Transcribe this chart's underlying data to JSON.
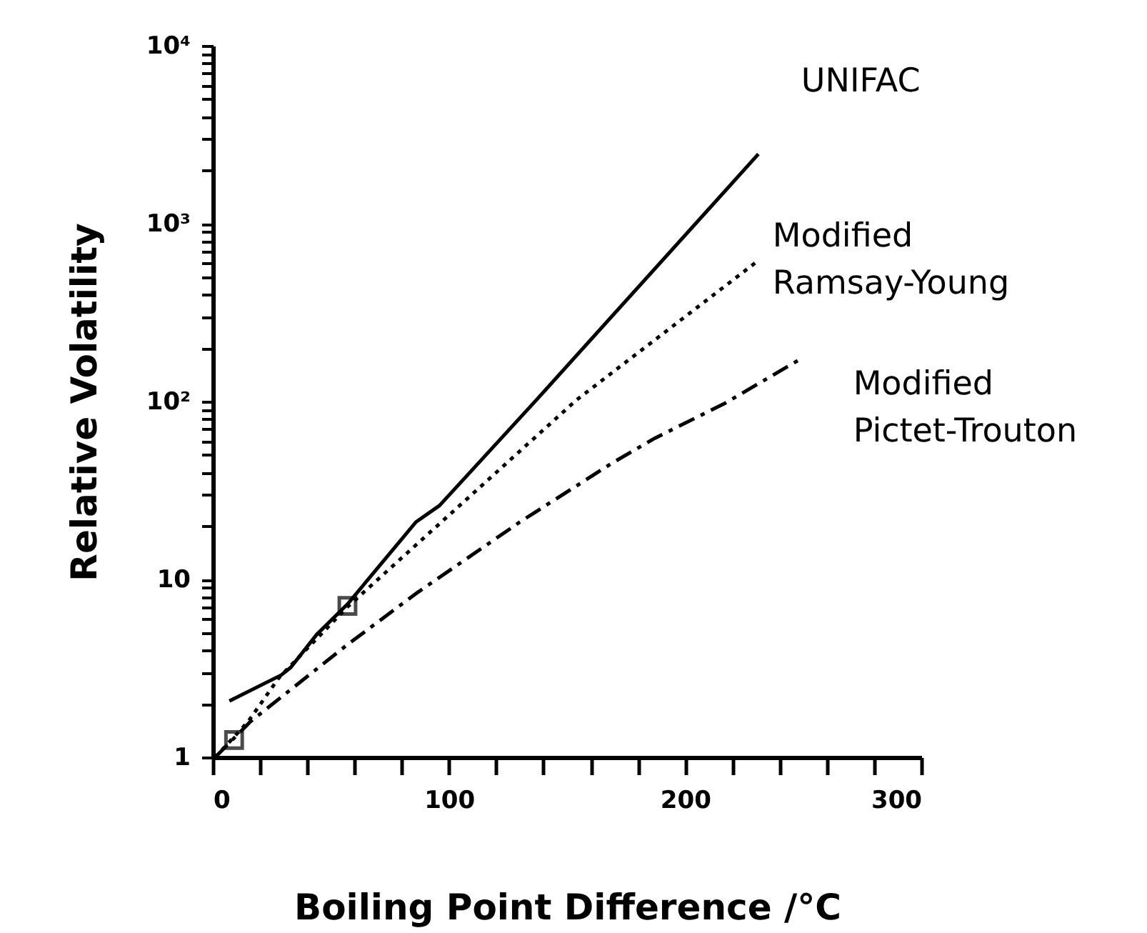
{
  "chart_data": {
    "type": "line",
    "xlabel": "Boiling Point Difference /°C",
    "ylabel": "Relative Volatility",
    "log": "y",
    "xlim": [
      0,
      300
    ],
    "ylim": [
      1,
      10000
    ],
    "xticks": [
      0,
      {
        "value": 20,
        "label": null
      },
      {
        "value": 40,
        "label": null
      },
      {
        "value": 60,
        "label": null
      },
      {
        "value": 80,
        "label": null
      },
      100,
      {
        "value": 120,
        "label": null
      },
      {
        "value": 140,
        "label": null
      },
      {
        "value": 160,
        "label": null
      },
      {
        "value": 180,
        "label": null
      },
      200,
      {
        "value": 220,
        "label": null
      },
      {
        "value": 240,
        "label": null
      },
      {
        "value": 260,
        "label": null
      },
      {
        "value": 280,
        "label": null
      },
      300
    ],
    "yticks": [
      1,
      {
        "value": 2,
        "label": null
      },
      {
        "value": 3,
        "label": null
      },
      {
        "value": 4,
        "label": null
      },
      {
        "value": 5,
        "label": null
      },
      {
        "value": 6,
        "label": null
      },
      {
        "value": 7,
        "label": null
      },
      {
        "value": 8,
        "label": null
      },
      {
        "value": 9,
        "label": null
      },
      10,
      {
        "value": 20,
        "label": null
      },
      {
        "value": 30,
        "label": null
      },
      {
        "value": 40,
        "label": null
      },
      {
        "value": 50,
        "label": null
      },
      {
        "value": 60,
        "label": null
      },
      {
        "value": 70,
        "label": null
      },
      {
        "value": 80,
        "label": null
      },
      {
        "value": 90,
        "label": null
      },
      {
        "value": 100,
        "label": "10²"
      },
      {
        "value": 200,
        "label": null
      },
      {
        "value": 300,
        "label": null
      },
      {
        "value": 400,
        "label": null
      },
      {
        "value": 500,
        "label": null
      },
      {
        "value": 600,
        "label": null
      },
      {
        "value": 700,
        "label": null
      },
      {
        "value": 800,
        "label": null
      },
      {
        "value": 900,
        "label": null
      },
      {
        "value": 1000,
        "label": "10³"
      },
      {
        "value": 2000,
        "label": null
      },
      {
        "value": 3000,
        "label": null
      },
      {
        "value": 4000,
        "label": null
      },
      {
        "value": 5000,
        "label": null
      },
      {
        "value": 6000,
        "label": null
      },
      {
        "value": 7000,
        "label": null
      },
      {
        "value": 8000,
        "label": null
      },
      {
        "value": 9000,
        "label": null
      },
      {
        "value": 10000,
        "label": "10⁴"
      }
    ],
    "grid": false,
    "series": [
      {
        "name": "UNIFAC",
        "color": "#000000",
        "line_style": "solid",
        "marker": "none",
        "x": [
          7,
          29,
          33,
          44,
          57,
          86,
          96,
          137,
          231
        ],
        "values": [
          2.07,
          2.9,
          3.2,
          4.9,
          7.25,
          21,
          26,
          102,
          2460
        ]
      },
      {
        "name": "Modified Ramsay-Young",
        "color": "#000000",
        "line_style": "dotted",
        "marker": "none",
        "x": [
          1,
          8,
          15,
          28,
          57,
          154,
          231
        ],
        "values": [
          1,
          1.26,
          1.59,
          2.8,
          7.0,
          102,
          620
        ]
      },
      {
        "name": "Modified Pictet-Trouton",
        "color": "#000000",
        "line_style": "dashed",
        "marker": "none",
        "x": [
          1,
          16,
          57,
          87,
          130,
          169,
          187,
          217,
          250
        ],
        "values": [
          1,
          1.59,
          4.3,
          8.5,
          21,
          45,
          62,
          98,
          177
        ]
      },
      {
        "type": "scatter",
        "color": "#000000",
        "marker": "square",
        "x": [
          9,
          57
        ],
        "values": [
          1.25,
          7.1
        ]
      }
    ]
  }
}
